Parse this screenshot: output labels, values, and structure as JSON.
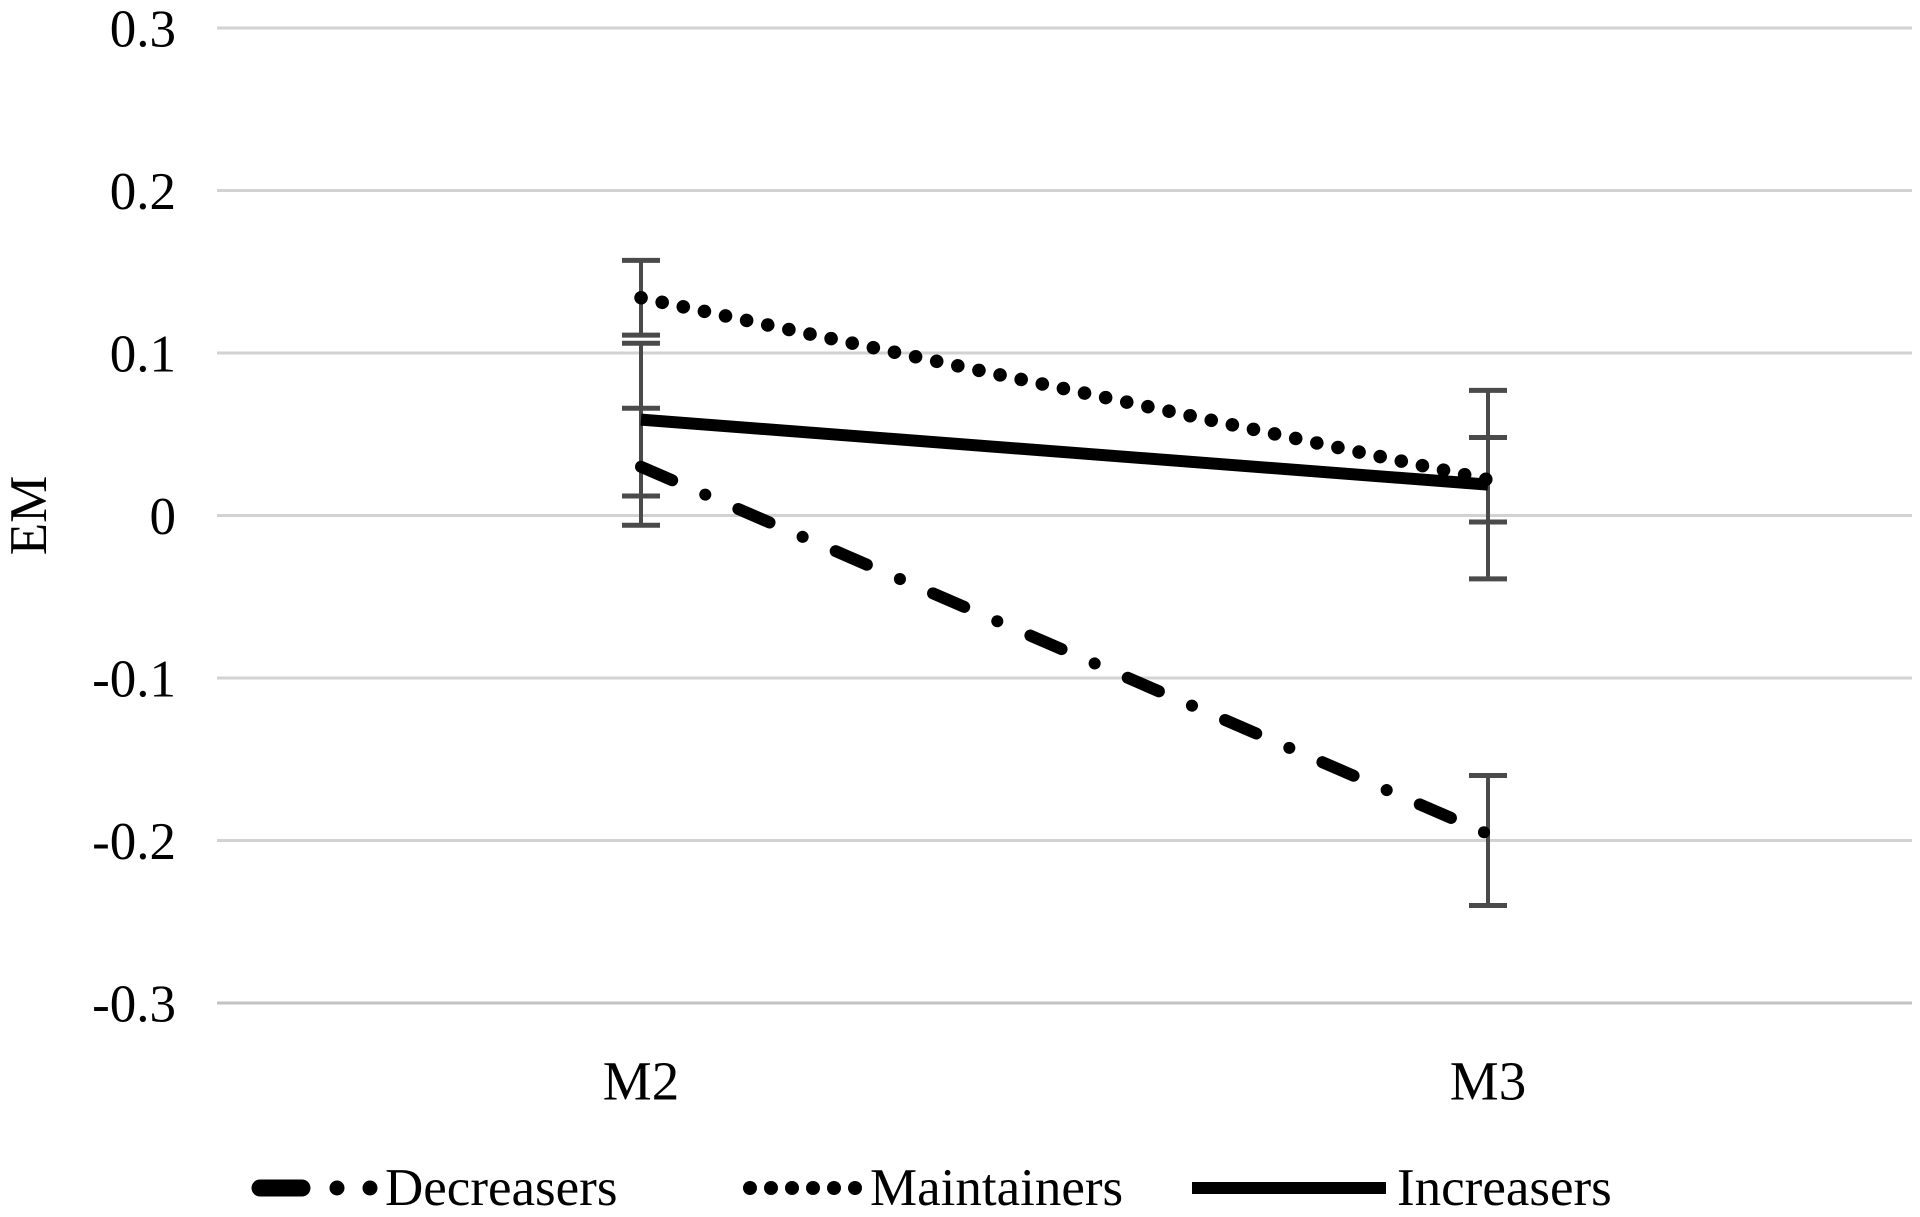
{
  "figure": {
    "background": "#ffffff",
    "grid_color": "#d2d2d2",
    "bottom_grid_color": "#c2c2c2",
    "line_color": "#000000",
    "error_bar_color": "#4a4a4a",
    "text_color": "#000000"
  },
  "chart_data": {
    "type": "line",
    "title": "",
    "xlabel": "",
    "ylabel": "EM",
    "categories": [
      "M2",
      "M3"
    ],
    "ylim": [
      -0.3,
      0.3
    ],
    "grid": "horizontal",
    "legend_position": "bottom",
    "yticks": [
      {
        "value": 0.3,
        "label": "0.3"
      },
      {
        "value": 0.2,
        "label": "0.2"
      },
      {
        "value": 0.1,
        "label": "0.1"
      },
      {
        "value": 0,
        "label": "0"
      },
      {
        "value": -0.1,
        "label": "-0.1"
      },
      {
        "value": -0.2,
        "label": "-0.2"
      },
      {
        "value": -0.3,
        "label": "-0.3"
      }
    ],
    "series": [
      {
        "name": "Decreasers",
        "style": "dash-dot",
        "values": [
          0.03,
          -0.196
        ],
        "error_bars": [
          {
            "low": -0.006,
            "high": 0.066
          },
          {
            "low": -0.24,
            "high": -0.16
          }
        ]
      },
      {
        "name": "Maintainers",
        "style": "dotted",
        "values": [
          0.134,
          0.022
        ],
        "error_bars": [
          {
            "low": 0.111,
            "high": 0.157
          },
          {
            "low": -0.004,
            "high": 0.048
          }
        ]
      },
      {
        "name": "Increasers",
        "style": "solid",
        "values": [
          0.059,
          0.019
        ],
        "error_bars": [
          {
            "low": 0.012,
            "high": 0.106
          },
          {
            "low": -0.039,
            "high": 0.077
          }
        ]
      }
    ]
  }
}
